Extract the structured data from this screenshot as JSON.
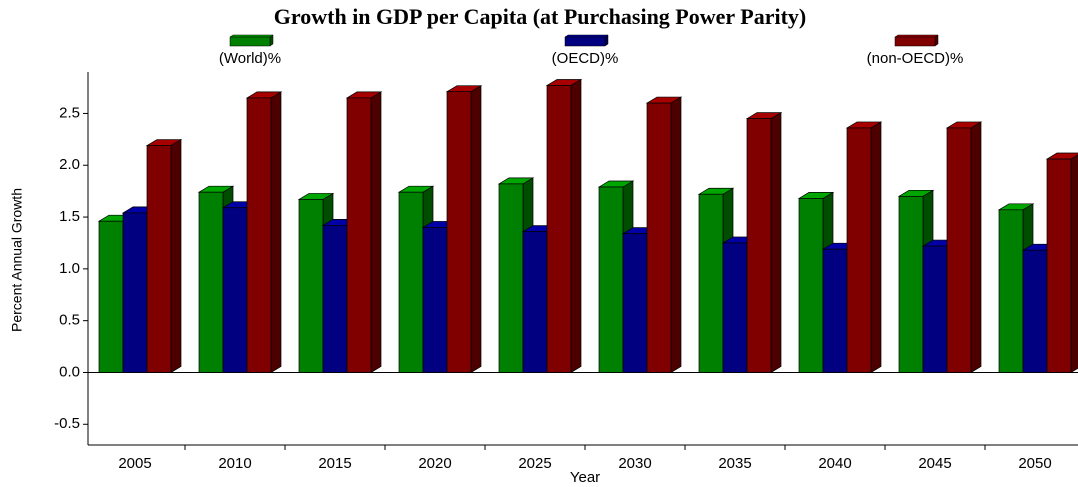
{
  "chart_data": {
    "type": "bar3d",
    "title": "Growth in GDP per Capita (at Purchasing Power Parity)",
    "xlabel": "Year",
    "ylabel": "Percent Annual Growth",
    "categories": [
      "2005",
      "2010",
      "2015",
      "2020",
      "2025",
      "2030",
      "2035",
      "2040",
      "2045",
      "2050"
    ],
    "series": [
      {
        "name": "(World)%",
        "color": "#008000",
        "values": [
          1.46,
          1.74,
          1.67,
          1.74,
          1.82,
          1.79,
          1.72,
          1.68,
          1.7,
          1.57
        ]
      },
      {
        "name": "(OECD)%",
        "color": "#000080",
        "values": [
          1.54,
          1.59,
          1.42,
          1.4,
          1.36,
          1.34,
          1.25,
          1.19,
          1.22,
          1.18
        ]
      },
      {
        "name": "(non-OECD)%",
        "color": "#800000",
        "values": [
          2.19,
          2.65,
          2.65,
          2.71,
          2.77,
          2.6,
          2.45,
          2.36,
          2.36,
          2.06
        ]
      }
    ],
    "ylim": [
      -0.7,
      2.9
    ],
    "yticks": [
      -0.5,
      {
        "value": 0,
        "label": "0.0"
      },
      0.5,
      {
        "value": 1,
        "label": "1.0"
      },
      1.5,
      {
        "value": 2,
        "label": "2.0"
      },
      2.5
    ]
  }
}
